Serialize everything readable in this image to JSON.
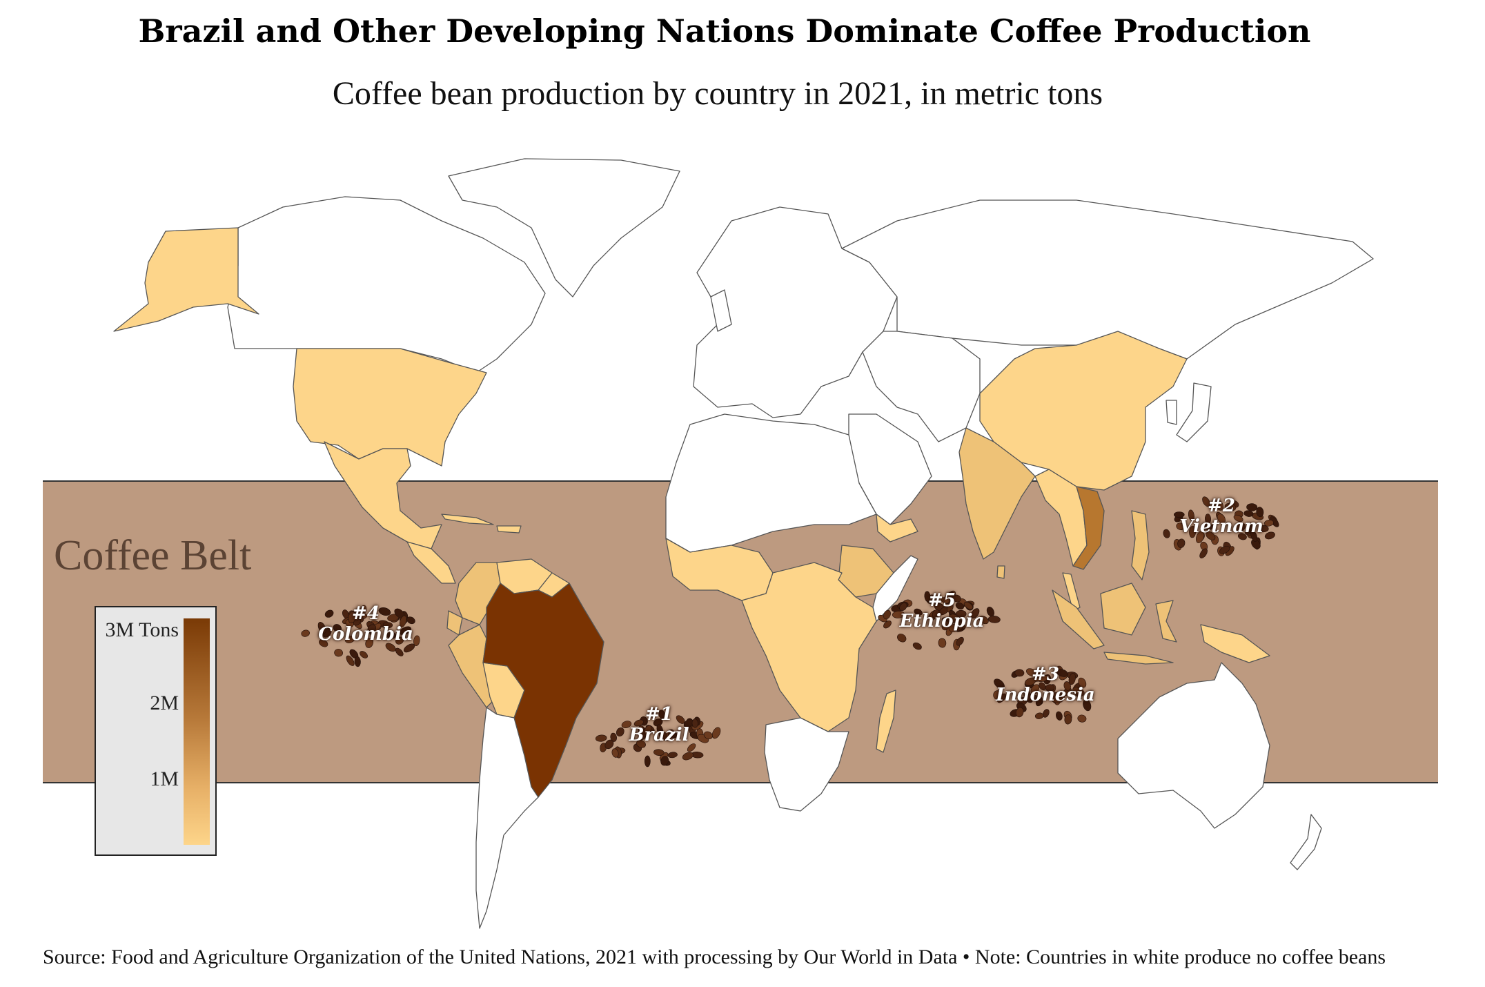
{
  "title": "Brazil and Other Developing Nations Dominate Coffee Production",
  "subtitle": "Coffee bean production by country in 2021, in metric tons",
  "source": "Source: Food and Agriculture Organization of the United Nations, 2021 with processing by Our World in Data • Note: Countries in white produce no coffee beans",
  "belt_label": "Coffee Belt",
  "legend": {
    "max_label": "3M Tons",
    "mid_label": "2M",
    "low_label": "1M",
    "colors": {
      "high": "#7a3a06",
      "low": "#fdd58a"
    }
  },
  "colors": {
    "belt": "#bd9a80",
    "belt_border": "#333333",
    "none": "#ffffff",
    "low_producer": "#fdd58a",
    "mid_producer": "#eec277",
    "vietnam": "#b7772f",
    "brazil": "#7a3302",
    "bean": "#4a2412"
  },
  "top_producers": [
    {
      "rank": "#1",
      "country": "Brazil"
    },
    {
      "rank": "#2",
      "country": "Vietnam"
    },
    {
      "rank": "#3",
      "country": "Indonesia"
    },
    {
      "rank": "#4",
      "country": "Colombia"
    },
    {
      "rank": "#5",
      "country": "Ethiopia"
    }
  ]
}
